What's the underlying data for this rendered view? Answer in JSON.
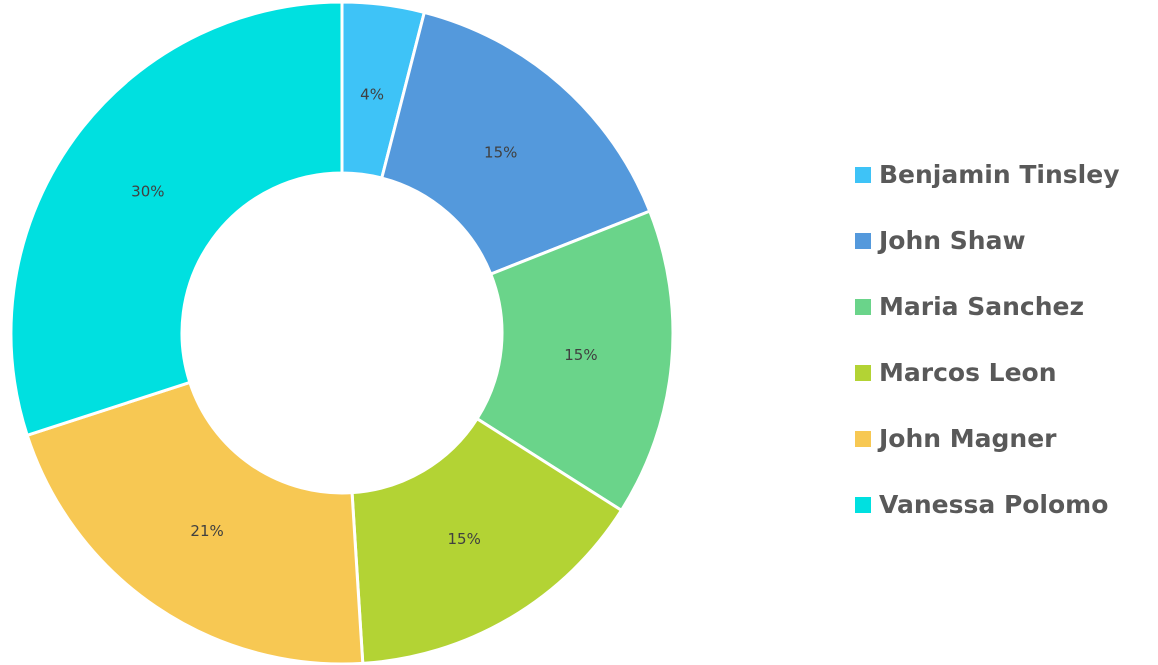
{
  "chart_data": {
    "type": "donut",
    "categories": [
      "Benjamin Tinsley",
      "John Shaw",
      "Maria Sanchez",
      "Marcos Leon",
      "John Magner",
      "Vanessa Polomo"
    ],
    "values": [
      4,
      15,
      15,
      15,
      21,
      30
    ],
    "value_labels": [
      "4%",
      "15%",
      "15%",
      "15%",
      "21%",
      "30%"
    ],
    "colors": [
      "#3ec3f7",
      "#5499dc",
      "#6ad48a",
      "#b3d334",
      "#f7c853",
      "#00e0e0"
    ],
    "legend": "right"
  }
}
